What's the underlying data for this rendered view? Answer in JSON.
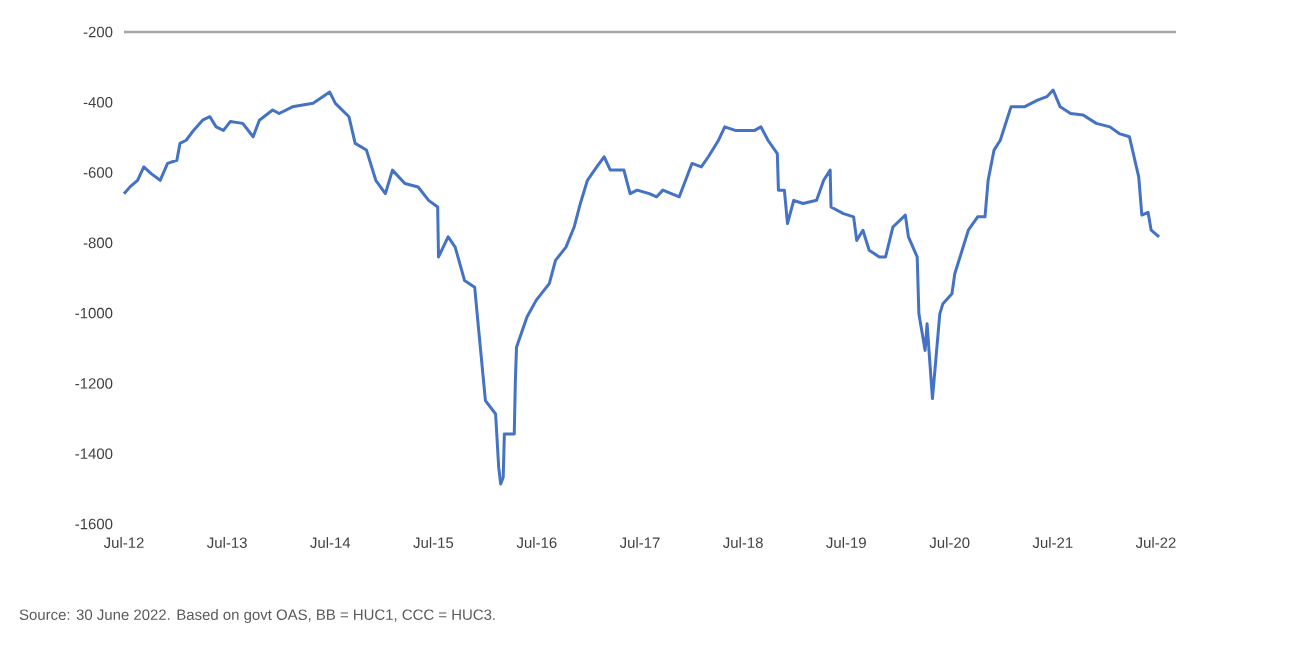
{
  "chart_data": {
    "type": "line",
    "x": [
      "2012-07-01",
      "2012-07-23",
      "2012-08-18",
      "2012-09-09",
      "2012-10-05",
      "2012-11-06",
      "2012-12-02",
      "2013-01-04",
      "2013-01-15",
      "2013-02-06",
      "2013-03-04",
      "2013-04-05",
      "2013-05-01",
      "2013-05-23",
      "2013-06-18",
      "2013-07-12",
      "2013-08-25",
      "2013-10-01",
      "2013-10-23",
      "2013-12-09",
      "2014-01-01",
      "2014-02-17",
      "2014-05-01",
      "2014-06-29",
      "2014-07-19",
      "2014-09-05",
      "2014-09-27",
      "2014-11-06",
      "2014-12-09",
      "2015-01-12",
      "2015-02-06",
      "2015-03-22",
      "2015-05-08",
      "2015-06-14",
      "2015-07-16",
      "2015-07-19",
      "2015-08-22",
      "2015-09-16",
      "2015-10-19",
      "2015-11-24",
      "2015-12-05",
      "2016-01-01",
      "2016-02-06",
      "2016-02-17",
      "2016-02-24",
      "2016-03-04",
      "2016-03-08",
      "2016-04-12",
      "2016-04-16",
      "2016-04-20",
      "2016-05-27",
      "2016-06-29",
      "2016-08-14",
      "2016-09-05",
      "2016-10-12",
      "2016-11-10",
      "2016-12-02",
      "2016-12-27",
      "2017-01-29",
      "2017-02-24",
      "2017-03-18",
      "2017-05-05",
      "2017-05-27",
      "2017-06-21",
      "2017-08-03",
      "2017-08-29",
      "2017-09-20",
      "2017-11-17",
      "2018-01-01",
      "2018-02-03",
      "2018-02-28",
      "2018-04-05",
      "2018-04-27",
      "2018-06-03",
      "2018-08-11",
      "2018-09-02",
      "2018-09-27",
      "2018-10-30",
      "2018-11-03",
      "2018-11-24",
      "2018-12-05",
      "2018-12-27",
      "2019-01-29",
      "2019-03-18",
      "2019-04-12",
      "2019-05-05",
      "2019-05-08",
      "2019-06-21",
      "2019-07-27",
      "2019-08-07",
      "2019-08-29",
      "2019-09-20",
      "2019-10-26",
      "2019-11-17",
      "2019-12-13",
      "2020-01-26",
      "2020-02-06",
      "2020-03-08",
      "2020-03-14",
      "2020-04-05",
      "2020-04-12",
      "2020-05-01",
      "2020-05-27",
      "2020-06-07",
      "2020-07-09",
      "2020-07-19",
      "2020-08-14",
      "2020-09-05",
      "2020-10-08",
      "2020-11-03",
      "2020-11-14",
      "2020-12-05",
      "2020-12-27",
      "2021-02-03",
      "2021-03-22",
      "2021-05-08",
      "2021-06-10",
      "2021-07-02",
      "2021-07-27",
      "2021-09-02",
      "2021-10-16",
      "2021-12-02",
      "2022-01-19",
      "2022-02-21",
      "2022-03-29",
      "2022-05-01",
      "2022-05-12",
      "2022-06-03",
      "2022-06-14",
      "2022-07-12"
    ],
    "values": [
      -660,
      -640,
      -622,
      -584,
      -603,
      -622,
      -574,
      -565,
      -517,
      -508,
      -480,
      -451,
      -441,
      -470,
      -480,
      -455,
      -460,
      -498,
      -451,
      -422,
      -432,
      -413,
      -403,
      -371,
      -403,
      -441,
      -517,
      -536,
      -622,
      -660,
      -593,
      -631,
      -641,
      -679,
      -698,
      -840,
      -783,
      -812,
      -907,
      -926,
      -1021,
      -1249,
      -1287,
      -1439,
      -1486,
      -1467,
      -1344,
      -1344,
      -1192,
      -1097,
      -1011,
      -963,
      -916,
      -850,
      -812,
      -755,
      -688,
      -622,
      -584,
      -555,
      -593,
      -593,
      -660,
      -650,
      -660,
      -669,
      -650,
      -669,
      -574,
      -584,
      -555,
      -508,
      -470,
      -480,
      -480,
      -470,
      -508,
      -546,
      -650,
      -650,
      -745,
      -679,
      -688,
      -679,
      -622,
      -593,
      -698,
      -717,
      -726,
      -793,
      -764,
      -821,
      -840,
      -840,
      -755,
      -721,
      -783,
      -840,
      -1002,
      -1106,
      -1030,
      -1243,
      -1002,
      -973,
      -945,
      -888,
      -821,
      -764,
      -726,
      -726,
      -622,
      -536,
      -508,
      -413,
      -413,
      -394,
      -384,
      -365,
      -413,
      -432,
      -436,
      -460,
      -470,
      -489,
      -498,
      -612,
      -721,
      -713,
      -764,
      -783
    ],
    "color": "#4472c4",
    "xlim": [
      "2012-07-01",
      "2022-09-10"
    ],
    "xticks": [
      {
        "value": "2012-07-01",
        "label": "Jul-12"
      },
      {
        "value": "2013-07-01",
        "label": "Jul-13"
      },
      {
        "value": "2014-07-01",
        "label": "Jul-14"
      },
      {
        "value": "2015-07-01",
        "label": "Jul-15"
      },
      {
        "value": "2016-07-01",
        "label": "Jul-16"
      },
      {
        "value": "2017-07-01",
        "label": "Jul-17"
      },
      {
        "value": "2018-07-01",
        "label": "Jul-18"
      },
      {
        "value": "2019-07-01",
        "label": "Jul-19"
      },
      {
        "value": "2020-07-01",
        "label": "Jul-20"
      },
      {
        "value": "2021-07-01",
        "label": "Jul-21"
      },
      {
        "value": "2022-07-01",
        "label": "Jul-22"
      }
    ],
    "ylim": [
      -1600,
      -200
    ],
    "yticks": [
      -1600,
      -1400,
      -1200,
      -1000,
      -800,
      -600,
      -400,
      -200
    ],
    "ref_lines": [
      {
        "axis": "y",
        "value": -200,
        "color": "#a6a6a6"
      }
    ],
    "annotations": [
      "Source: 30 June 2022. Based on govt OAS, BB = HUC1, CCC = HUC3."
    ]
  }
}
